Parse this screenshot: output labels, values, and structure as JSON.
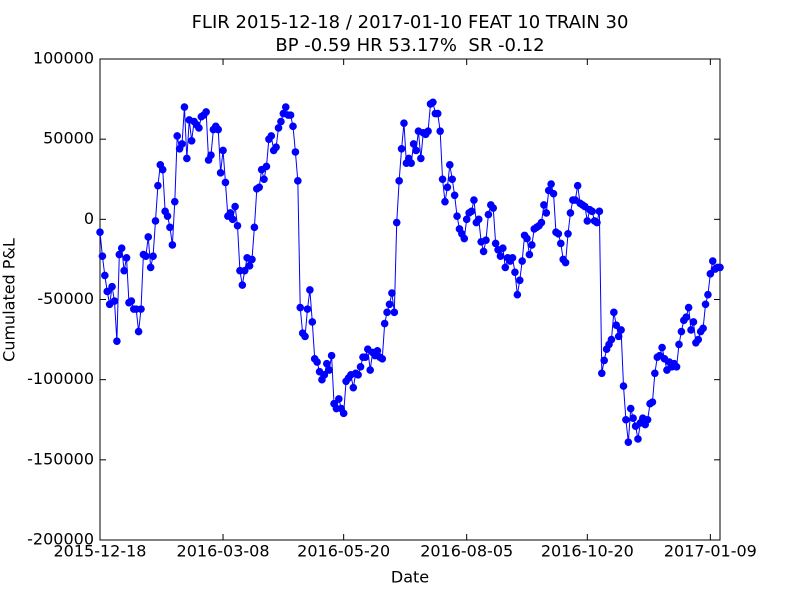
{
  "chart_data": {
    "type": "line",
    "title": "FLIR 2015-12-18 / 2017-01-10 FEAT 10 TRAIN 30",
    "subtitle": "BP -0.59 HR 53.17%  SR -0.12",
    "x_label": "Date",
    "y_label": "Cumulated P&L",
    "color": "#0000ff",
    "ylim": [
      -200000,
      100000
    ],
    "yticks": [
      -200000,
      -150000,
      -100000,
      -50000,
      0,
      50000,
      100000
    ],
    "grid": false,
    "categories": [
      "2015-12-18",
      null,
      null,
      null,
      null,
      null,
      null,
      null,
      null,
      null,
      null,
      null,
      null,
      null,
      null,
      null,
      null,
      null,
      null,
      null,
      null,
      null,
      null,
      null,
      null,
      null,
      null,
      null,
      null,
      null,
      null,
      null,
      null,
      null,
      null,
      null,
      null,
      null,
      null,
      null,
      null,
      null,
      null,
      null,
      null,
      null,
      null,
      null,
      null,
      null,
      null,
      "2016-03-08",
      null,
      null,
      null,
      null,
      null,
      null,
      null,
      null,
      null,
      null,
      null,
      null,
      null,
      null,
      null,
      null,
      null,
      null,
      null,
      null,
      null,
      null,
      null,
      null,
      null,
      null,
      null,
      null,
      null,
      null,
      null,
      null,
      null,
      null,
      null,
      null,
      null,
      null,
      null,
      null,
      null,
      null,
      null,
      null,
      null,
      null,
      null,
      null,
      null,
      "2016-05-20",
      null,
      null,
      null,
      null,
      null,
      null,
      null,
      null,
      null,
      null,
      null,
      null,
      null,
      null,
      null,
      null,
      null,
      null,
      null,
      null,
      null,
      null,
      null,
      null,
      null,
      null,
      null,
      null,
      null,
      null,
      null,
      null,
      null,
      null,
      null,
      null,
      null,
      null,
      null,
      null,
      null,
      null,
      null,
      null,
      null,
      null,
      null,
      null,
      null,
      null,
      "2016-08-05",
      null,
      null,
      null,
      null,
      null,
      null,
      null,
      null,
      null,
      null,
      null,
      null,
      null,
      null,
      null,
      null,
      null,
      null,
      null,
      null,
      null,
      null,
      null,
      null,
      null,
      null,
      null,
      null,
      null,
      null,
      null,
      null,
      null,
      null,
      null,
      null,
      null,
      null,
      null,
      null,
      null,
      null,
      null,
      null,
      null,
      null,
      null,
      null,
      null,
      "2016-10-20",
      null,
      null,
      null,
      null,
      null,
      null,
      null,
      null,
      null,
      null,
      null,
      null,
      null,
      null,
      null,
      null,
      null,
      null,
      null,
      null,
      null,
      null,
      null,
      null,
      null,
      null,
      null,
      null,
      null,
      null,
      null,
      null,
      null,
      null,
      null,
      null,
      null,
      null,
      null,
      null,
      null,
      null,
      null,
      null,
      null,
      null,
      null,
      null,
      null,
      null,
      "2017-01-09",
      null,
      null,
      null,
      null
    ],
    "values": [
      -8000,
      -23000,
      -35000,
      -45000,
      -53000,
      -42000,
      -51000,
      -76000,
      -22000,
      -18000,
      -32000,
      -24000,
      -52000,
      -51000,
      -56000,
      -56000,
      -70000,
      -56000,
      -22000,
      -23000,
      -11000,
      -30000,
      -23000,
      -1000,
      21000,
      34000,
      31000,
      5000,
      2000,
      -5000,
      -16000,
      11000,
      52000,
      44000,
      47000,
      70000,
      38000,
      62000,
      49000,
      61000,
      59000,
      57000,
      64000,
      65000,
      67000,
      37000,
      40000,
      56000,
      58000,
      56000,
      29000,
      43000,
      23000,
      2000,
      4000,
      0,
      8000,
      -4000,
      -32000,
      -41000,
      -32000,
      -24000,
      -29000,
      -25000,
      -5000,
      19000,
      20000,
      31000,
      25000,
      33000,
      50000,
      52000,
      43000,
      45000,
      57000,
      61000,
      66000,
      70000,
      65000,
      65000,
      58000,
      42000,
      24000,
      -55000,
      -71000,
      -73000,
      -56000,
      -44000,
      -64000,
      -87000,
      -89000,
      -95000,
      -100000,
      -97000,
      -90000,
      -94000,
      -85000,
      -115000,
      -118000,
      -112000,
      -118000,
      -121000,
      -101000,
      -99000,
      -97000,
      -105000,
      -96000,
      -97000,
      -92000,
      -86000,
      -86000,
      -81000,
      -94000,
      -83000,
      -85000,
      -82000,
      -86000,
      -87000,
      -65000,
      -58000,
      -53000,
      -46000,
      -58000,
      -2000,
      24000,
      44000,
      60000,
      35000,
      38000,
      35000,
      47000,
      43000,
      55000,
      38000,
      54000,
      53000,
      55000,
      72000,
      73000,
      66000,
      66000,
      55000,
      25000,
      11000,
      20000,
      34000,
      25000,
      15000,
      2000,
      -6000,
      -9000,
      -12000,
      0,
      4000,
      5000,
      12000,
      -2000,
      0,
      -14000,
      -20000,
      -13000,
      3000,
      9000,
      7000,
      -15000,
      -19000,
      -23000,
      -18000,
      -30000,
      -24000,
      -26000,
      -24000,
      -33000,
      -47000,
      -38000,
      -26000,
      -10000,
      -12000,
      -22000,
      -16000,
      -6000,
      -5000,
      -4000,
      -2000,
      9000,
      4000,
      18000,
      22000,
      16000,
      -8000,
      -9000,
      -15000,
      -25000,
      -27000,
      -9000,
      4000,
      12000,
      12000,
      21000,
      10000,
      9000,
      8000,
      -1000,
      6000,
      5000,
      -1000,
      -2000,
      5000,
      -96000,
      -88000,
      -81000,
      -78000,
      -75000,
      -58000,
      -66000,
      -73000,
      -69000,
      -104000,
      -125000,
      -139000,
      -118000,
      -124000,
      -129000,
      -137000,
      -127000,
      -124000,
      -128000,
      -125000,
      -115000,
      -114000,
      -96000,
      -86000,
      -85000,
      -80000,
      -87000,
      -94000,
      -89000,
      -92000,
      -90000,
      -92000,
      -78000,
      -70000,
      -63000,
      -61000,
      -55000,
      -69000,
      -64000,
      -77000,
      -75000,
      -70000,
      -68000,
      -53000,
      -47000,
      -34000,
      -26000,
      -31000,
      -30000,
      -30000
    ]
  }
}
